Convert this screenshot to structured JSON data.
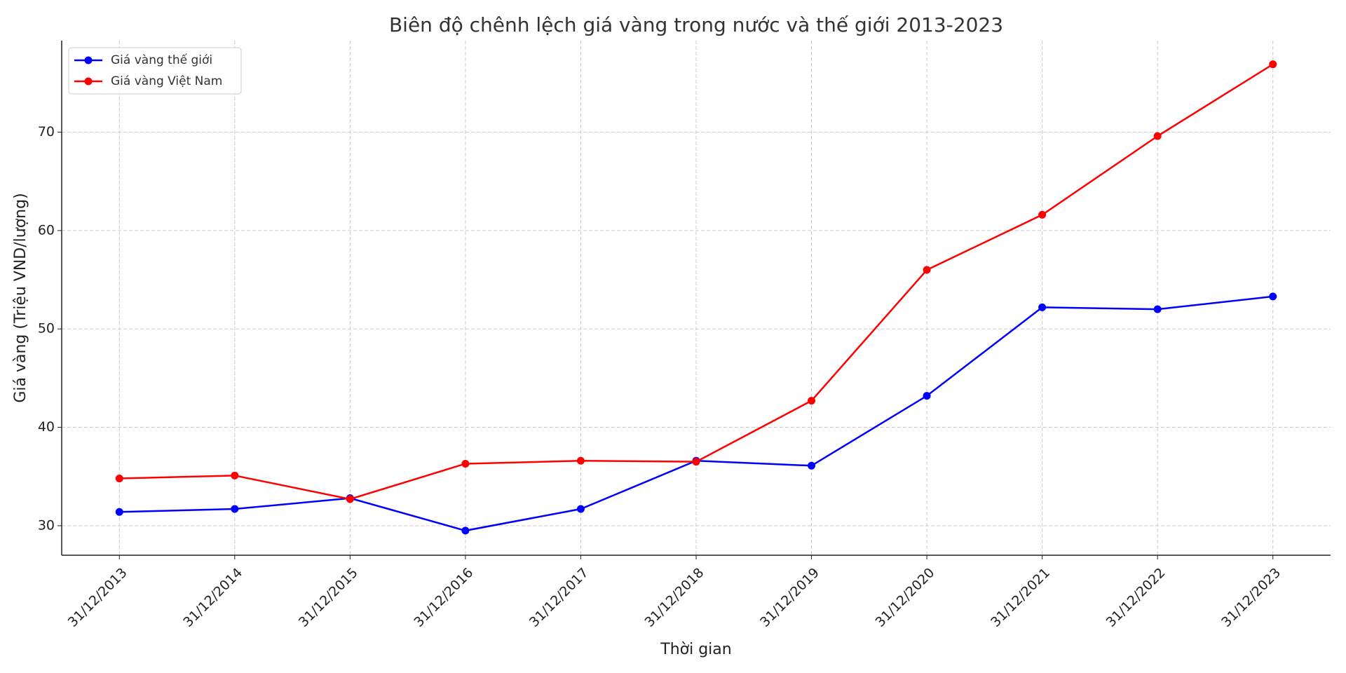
{
  "chart_data": {
    "type": "line",
    "title": "Biên độ chênh lệch giá vàng trong nước và thế giới 2013-2023",
    "x_label": "Thời gian",
    "y_label": "Giá vàng (Triệu VND/lượng)",
    "categories": [
      "31/12/2013",
      "31/12/2014",
      "31/12/2015",
      "31/12/2016",
      "31/12/2017",
      "31/12/2018",
      "31/12/2019",
      "31/12/2020",
      "31/12/2021",
      "31/12/2022",
      "31/12/2023"
    ],
    "series": [
      {
        "name": "Giá vàng thế giới",
        "color": "#0000ff",
        "values": [
          31.4,
          31.7,
          32.8,
          29.5,
          31.7,
          36.6,
          36.1,
          43.2,
          52.2,
          52.0,
          53.3
        ]
      },
      {
        "name": "Giá vàng Việt Nam",
        "color": "#ff0000",
        "values": [
          34.8,
          35.1,
          32.7,
          36.3,
          36.6,
          36.5,
          42.7,
          56.0,
          61.6,
          69.6,
          76.9
        ]
      }
    ],
    "ylim": [
      27.0,
      79.3
    ],
    "yticks": [
      30,
      40,
      50,
      60,
      70
    ],
    "grid": true,
    "legend": "upper-left"
  }
}
